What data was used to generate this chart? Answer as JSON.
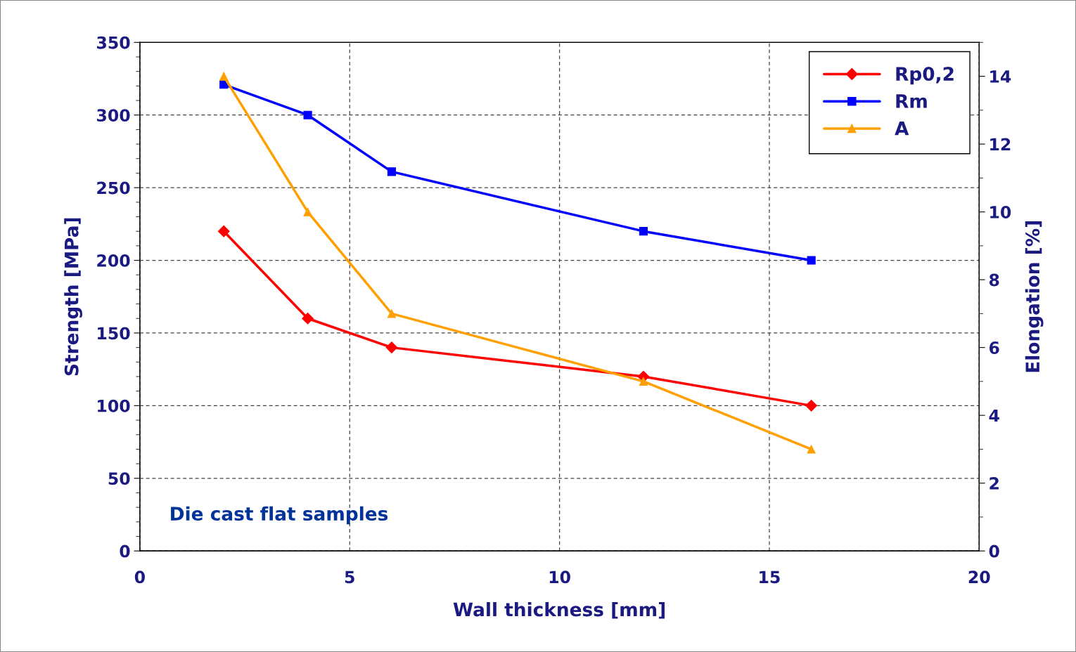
{
  "chart_data": {
    "type": "line",
    "xlabel": "Wall thickness [mm]",
    "ylabel": "Strength [MPa]",
    "y2label": "Elongation [%]",
    "x": [
      2,
      4,
      6,
      12,
      16
    ],
    "series": [
      {
        "name": "Rp0,2",
        "color": "#ff0000",
        "marker": "diamond",
        "values": [
          220,
          160,
          140,
          120,
          100
        ]
      },
      {
        "name": "Rm",
        "color": "#0000ff",
        "marker": "square",
        "values": [
          321,
          300,
          261,
          220,
          200
        ]
      },
      {
        "name": "A",
        "color": "#ffa000",
        "marker": "triangle",
        "axis": "y2",
        "values": [
          14,
          10,
          7,
          5,
          3
        ]
      }
    ],
    "xlim": [
      0,
      20
    ],
    "xticks": [
      0,
      5,
      10,
      15,
      20
    ],
    "ylim": [
      0,
      350
    ],
    "yticks": [
      0,
      50,
      100,
      150,
      200,
      250,
      300,
      350
    ],
    "y2lim": [
      0,
      15
    ],
    "y2ticks": [
      0,
      2,
      4,
      6,
      8,
      10,
      12,
      14
    ],
    "grid": true,
    "legend": "top right",
    "line_style": "solid",
    "annotations": [
      "Die cast flat samples"
    ]
  }
}
